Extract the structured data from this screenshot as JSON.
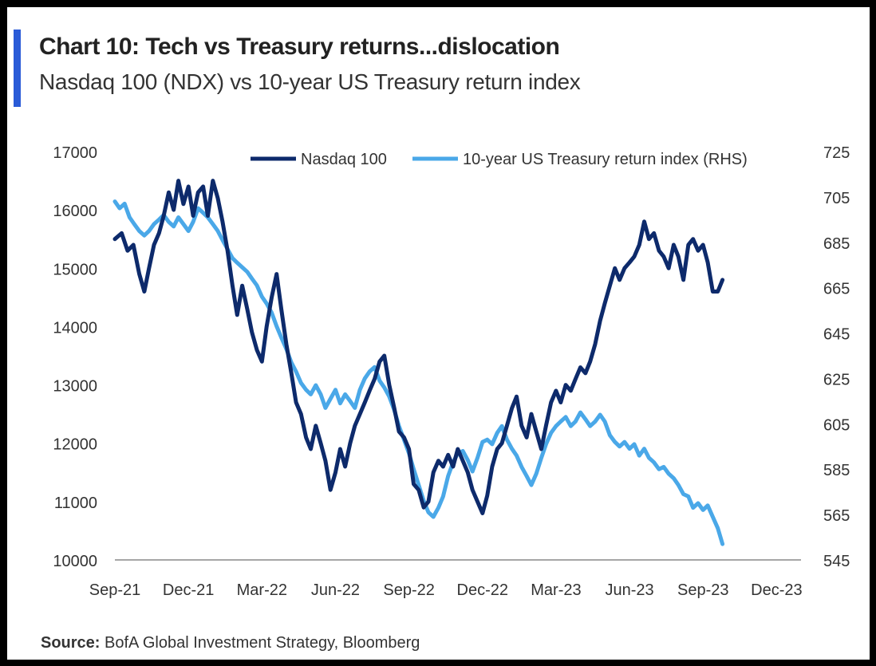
{
  "title": "Chart 10: Tech vs Treasury returns...dislocation",
  "subtitle": "Nasdaq 100 (NDX) vs 10-year US Treasury return index",
  "source": {
    "label": "Source:",
    "text": "BofA Global Investment Strategy, Bloomberg"
  },
  "colors": {
    "accent": "#2a5bd7",
    "nasdaq": "#0d2a6b",
    "treasury": "#4aa8e8",
    "axis": "#888888",
    "text": "#333333"
  },
  "chart_data": {
    "type": "line",
    "x_domain": [
      2021.667,
      2024.0
    ],
    "x_ticks": [
      {
        "label": "Sep-21",
        "x": 2021.667
      },
      {
        "label": "Dec-21",
        "x": 2021.917
      },
      {
        "label": "Mar-22",
        "x": 2022.167
      },
      {
        "label": "Jun-22",
        "x": 2022.417
      },
      {
        "label": "Sep-22",
        "x": 2022.667
      },
      {
        "label": "Dec-22",
        "x": 2022.917
      },
      {
        "label": "Mar-23",
        "x": 2023.167
      },
      {
        "label": "Jun-23",
        "x": 2023.417
      },
      {
        "label": "Sep-23",
        "x": 2023.667
      },
      {
        "label": "Dec-23",
        "x": 2023.917
      }
    ],
    "y_left": {
      "range": [
        10000,
        17000
      ],
      "ticks": [
        10000,
        11000,
        12000,
        13000,
        14000,
        15000,
        16000,
        17000
      ]
    },
    "y_right": {
      "range": [
        545,
        725
      ],
      "ticks": [
        545,
        565,
        585,
        605,
        625,
        645,
        665,
        685,
        705,
        725
      ],
      "label": "RHS"
    },
    "legend_position": "top-center",
    "series": [
      {
        "name": "Nasdaq 100",
        "axis": "left",
        "color": "#0d2a6b",
        "points": [
          [
            2021.667,
            15500
          ],
          [
            2021.69,
            15600
          ],
          [
            2021.71,
            15300
          ],
          [
            2021.73,
            15400
          ],
          [
            2021.75,
            14900
          ],
          [
            2021.767,
            14600
          ],
          [
            2021.783,
            15000
          ],
          [
            2021.8,
            15400
          ],
          [
            2021.817,
            15600
          ],
          [
            2021.833,
            15900
          ],
          [
            2021.85,
            16300
          ],
          [
            2021.867,
            16000
          ],
          [
            2021.883,
            16500
          ],
          [
            2021.9,
            16100
          ],
          [
            2021.917,
            16400
          ],
          [
            2021.933,
            15900
          ],
          [
            2021.95,
            16300
          ],
          [
            2021.967,
            16400
          ],
          [
            2021.983,
            15900
          ],
          [
            2022.0,
            16500
          ],
          [
            2022.017,
            16200
          ],
          [
            2022.033,
            15800
          ],
          [
            2022.05,
            15300
          ],
          [
            2022.067,
            14700
          ],
          [
            2022.083,
            14200
          ],
          [
            2022.1,
            14700
          ],
          [
            2022.117,
            14300
          ],
          [
            2022.133,
            13900
          ],
          [
            2022.15,
            13600
          ],
          [
            2022.167,
            13400
          ],
          [
            2022.183,
            14000
          ],
          [
            2022.2,
            14500
          ],
          [
            2022.217,
            14900
          ],
          [
            2022.233,
            14300
          ],
          [
            2022.25,
            13700
          ],
          [
            2022.267,
            13200
          ],
          [
            2022.283,
            12700
          ],
          [
            2022.3,
            12500
          ],
          [
            2022.317,
            12100
          ],
          [
            2022.333,
            11900
          ],
          [
            2022.35,
            12300
          ],
          [
            2022.367,
            12000
          ],
          [
            2022.383,
            11700
          ],
          [
            2022.4,
            11200
          ],
          [
            2022.417,
            11500
          ],
          [
            2022.433,
            11900
          ],
          [
            2022.45,
            11600
          ],
          [
            2022.467,
            12000
          ],
          [
            2022.483,
            12300
          ],
          [
            2022.5,
            12500
          ],
          [
            2022.517,
            12700
          ],
          [
            2022.533,
            12900
          ],
          [
            2022.55,
            13100
          ],
          [
            2022.567,
            13400
          ],
          [
            2022.583,
            13500
          ],
          [
            2022.6,
            13000
          ],
          [
            2022.617,
            12600
          ],
          [
            2022.633,
            12200
          ],
          [
            2022.65,
            12100
          ],
          [
            2022.667,
            11900
          ],
          [
            2022.683,
            11300
          ],
          [
            2022.7,
            11200
          ],
          [
            2022.717,
            10900
          ],
          [
            2022.733,
            11000
          ],
          [
            2022.75,
            11500
          ],
          [
            2022.767,
            11700
          ],
          [
            2022.783,
            11600
          ],
          [
            2022.8,
            11800
          ],
          [
            2022.817,
            11600
          ],
          [
            2022.833,
            11900
          ],
          [
            2022.85,
            11700
          ],
          [
            2022.867,
            11500
          ],
          [
            2022.883,
            11200
          ],
          [
            2022.9,
            11000
          ],
          [
            2022.917,
            10800
          ],
          [
            2022.933,
            11100
          ],
          [
            2022.95,
            11600
          ],
          [
            2022.967,
            11900
          ],
          [
            2022.983,
            12000
          ],
          [
            2023.0,
            12300
          ],
          [
            2023.017,
            12600
          ],
          [
            2023.033,
            12800
          ],
          [
            2023.05,
            12300
          ],
          [
            2023.067,
            12100
          ],
          [
            2023.083,
            12500
          ],
          [
            2023.1,
            12200
          ],
          [
            2023.117,
            11900
          ],
          [
            2023.133,
            12300
          ],
          [
            2023.15,
            12700
          ],
          [
            2023.167,
            12900
          ],
          [
            2023.183,
            12700
          ],
          [
            2023.2,
            13000
          ],
          [
            2023.217,
            12900
          ],
          [
            2023.233,
            13100
          ],
          [
            2023.25,
            13300
          ],
          [
            2023.267,
            13200
          ],
          [
            2023.283,
            13400
          ],
          [
            2023.3,
            13700
          ],
          [
            2023.317,
            14100
          ],
          [
            2023.333,
            14400
          ],
          [
            2023.35,
            14700
          ],
          [
            2023.367,
            15000
          ],
          [
            2023.383,
            14800
          ],
          [
            2023.4,
            15000
          ],
          [
            2023.417,
            15100
          ],
          [
            2023.433,
            15200
          ],
          [
            2023.45,
            15400
          ],
          [
            2023.467,
            15800
          ],
          [
            2023.483,
            15500
          ],
          [
            2023.5,
            15600
          ],
          [
            2023.517,
            15300
          ],
          [
            2023.533,
            15200
          ],
          [
            2023.55,
            15000
          ],
          [
            2023.567,
            15400
          ],
          [
            2023.583,
            15200
          ],
          [
            2023.6,
            14800
          ],
          [
            2023.617,
            15400
          ],
          [
            2023.633,
            15500
          ],
          [
            2023.65,
            15300
          ],
          [
            2023.667,
            15400
          ],
          [
            2023.683,
            15100
          ],
          [
            2023.7,
            14600
          ],
          [
            2023.717,
            14600
          ],
          [
            2023.733,
            14800
          ]
        ]
      },
      {
        "name": "10-year US Treasury return index (RHS)",
        "axis": "right",
        "color": "#4aa8e8",
        "points": [
          [
            2021.667,
            703
          ],
          [
            2021.683,
            700
          ],
          [
            2021.7,
            702
          ],
          [
            2021.717,
            696
          ],
          [
            2021.733,
            693
          ],
          [
            2021.75,
            690
          ],
          [
            2021.767,
            688
          ],
          [
            2021.783,
            690
          ],
          [
            2021.8,
            693
          ],
          [
            2021.817,
            695
          ],
          [
            2021.833,
            697
          ],
          [
            2021.85,
            694
          ],
          [
            2021.867,
            692
          ],
          [
            2021.883,
            696
          ],
          [
            2021.9,
            693
          ],
          [
            2021.917,
            690
          ],
          [
            2021.933,
            694
          ],
          [
            2021.95,
            700
          ],
          [
            2021.967,
            698
          ],
          [
            2021.983,
            696
          ],
          [
            2022.0,
            693
          ],
          [
            2022.017,
            690
          ],
          [
            2022.033,
            686
          ],
          [
            2022.05,
            682
          ],
          [
            2022.067,
            678
          ],
          [
            2022.083,
            676
          ],
          [
            2022.1,
            674
          ],
          [
            2022.117,
            672
          ],
          [
            2022.133,
            669
          ],
          [
            2022.15,
            666
          ],
          [
            2022.167,
            661
          ],
          [
            2022.183,
            658
          ],
          [
            2022.2,
            654
          ],
          [
            2022.217,
            648
          ],
          [
            2022.233,
            643
          ],
          [
            2022.25,
            638
          ],
          [
            2022.267,
            632
          ],
          [
            2022.283,
            628
          ],
          [
            2022.3,
            623
          ],
          [
            2022.317,
            620
          ],
          [
            2022.333,
            618
          ],
          [
            2022.35,
            622
          ],
          [
            2022.367,
            618
          ],
          [
            2022.383,
            612
          ],
          [
            2022.4,
            616
          ],
          [
            2022.417,
            620
          ],
          [
            2022.433,
            614
          ],
          [
            2022.45,
            618
          ],
          [
            2022.467,
            615
          ],
          [
            2022.483,
            612
          ],
          [
            2022.5,
            620
          ],
          [
            2022.517,
            625
          ],
          [
            2022.533,
            628
          ],
          [
            2022.55,
            630
          ],
          [
            2022.567,
            624
          ],
          [
            2022.583,
            621
          ],
          [
            2022.6,
            617
          ],
          [
            2022.617,
            611
          ],
          [
            2022.633,
            604
          ],
          [
            2022.65,
            598
          ],
          [
            2022.667,
            592
          ],
          [
            2022.683,
            585
          ],
          [
            2022.7,
            578
          ],
          [
            2022.717,
            571
          ],
          [
            2022.733,
            566
          ],
          [
            2022.75,
            564
          ],
          [
            2022.767,
            568
          ],
          [
            2022.783,
            573
          ],
          [
            2022.8,
            582
          ],
          [
            2022.817,
            588
          ],
          [
            2022.833,
            592
          ],
          [
            2022.85,
            593
          ],
          [
            2022.867,
            589
          ],
          [
            2022.883,
            584
          ],
          [
            2022.9,
            590
          ],
          [
            2022.917,
            597
          ],
          [
            2022.933,
            598
          ],
          [
            2022.95,
            596
          ],
          [
            2022.967,
            601
          ],
          [
            2022.983,
            604
          ],
          [
            2023.0,
            598
          ],
          [
            2023.017,
            594
          ],
          [
            2023.033,
            591
          ],
          [
            2023.05,
            586
          ],
          [
            2023.067,
            582
          ],
          [
            2023.083,
            578
          ],
          [
            2023.1,
            583
          ],
          [
            2023.117,
            590
          ],
          [
            2023.133,
            596
          ],
          [
            2023.15,
            601
          ],
          [
            2023.167,
            604
          ],
          [
            2023.183,
            606
          ],
          [
            2023.2,
            608
          ],
          [
            2023.217,
            604
          ],
          [
            2023.233,
            606
          ],
          [
            2023.25,
            610
          ],
          [
            2023.267,
            607
          ],
          [
            2023.283,
            604
          ],
          [
            2023.3,
            606
          ],
          [
            2023.317,
            609
          ],
          [
            2023.333,
            606
          ],
          [
            2023.35,
            600
          ],
          [
            2023.367,
            597
          ],
          [
            2023.383,
            595
          ],
          [
            2023.4,
            597
          ],
          [
            2023.417,
            594
          ],
          [
            2023.433,
            596
          ],
          [
            2023.45,
            591
          ],
          [
            2023.467,
            594
          ],
          [
            2023.483,
            590
          ],
          [
            2023.5,
            588
          ],
          [
            2023.517,
            585
          ],
          [
            2023.533,
            586
          ],
          [
            2023.55,
            583
          ],
          [
            2023.567,
            581
          ],
          [
            2023.583,
            578
          ],
          [
            2023.6,
            574
          ],
          [
            2023.617,
            573
          ],
          [
            2023.633,
            568
          ],
          [
            2023.65,
            570
          ],
          [
            2023.667,
            567
          ],
          [
            2023.683,
            569
          ],
          [
            2023.7,
            564
          ],
          [
            2023.717,
            559
          ],
          [
            2023.733,
            552
          ]
        ]
      }
    ]
  }
}
